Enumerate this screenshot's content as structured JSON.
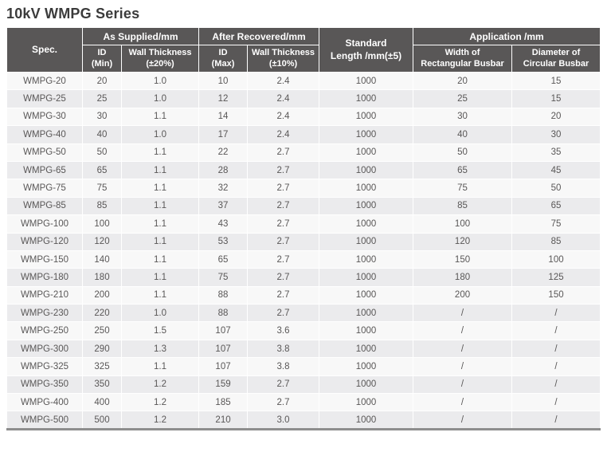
{
  "title": "10kV WMPG Series",
  "colors": {
    "header_bg": "#595757",
    "header_text": "#ffffff",
    "row_light": "#f8f8f8",
    "row_alt": "#ebebed",
    "cell_text": "#595757",
    "title_text": "#3b3b3b",
    "bottom_bar": "#8e8e8e"
  },
  "table": {
    "header": {
      "spec": "Spec.",
      "group_as_supplied": "As Supplied/mm",
      "group_after_recovered": "After Recovered/mm",
      "standard_length": "Standard\nLength /mm(±5)",
      "group_application": "Application /mm",
      "id_min": "ID\n(Min)",
      "wall_thickness_20": "Wall Thickness\n(±20%)",
      "id_max": "ID\n(Max)",
      "wall_thickness_10": "Wall Thickness\n(±10%)",
      "width_rect_busbar": "Width of\nRectangular Busbar",
      "dia_circ_busbar": "Diameter of\nCircular Busbar"
    },
    "rows": [
      [
        "WMPG-20",
        "20",
        "1.0",
        "10",
        "2.4",
        "1000",
        "20",
        "15"
      ],
      [
        "WMPG-25",
        "25",
        "1.0",
        "12",
        "2.4",
        "1000",
        "25",
        "15"
      ],
      [
        "WMPG-30",
        "30",
        "1.1",
        "14",
        "2.4",
        "1000",
        "30",
        "20"
      ],
      [
        "WMPG-40",
        "40",
        "1.0",
        "17",
        "2.4",
        "1000",
        "40",
        "30"
      ],
      [
        "WMPG-50",
        "50",
        "1.1",
        "22",
        "2.7",
        "1000",
        "50",
        "35"
      ],
      [
        "WMPG-65",
        "65",
        "1.1",
        "28",
        "2.7",
        "1000",
        "65",
        "45"
      ],
      [
        "WMPG-75",
        "75",
        "1.1",
        "32",
        "2.7",
        "1000",
        "75",
        "50"
      ],
      [
        "WMPG-85",
        "85",
        "1.1",
        "37",
        "2.7",
        "1000",
        "85",
        "65"
      ],
      [
        "WMPG-100",
        "100",
        "1.1",
        "43",
        "2.7",
        "1000",
        "100",
        "75"
      ],
      [
        "WMPG-120",
        "120",
        "1.1",
        "53",
        "2.7",
        "1000",
        "120",
        "85"
      ],
      [
        "WMPG-150",
        "140",
        "1.1",
        "65",
        "2.7",
        "1000",
        "150",
        "100"
      ],
      [
        "WMPG-180",
        "180",
        "1.1",
        "75",
        "2.7",
        "1000",
        "180",
        "125"
      ],
      [
        "WMPG-210",
        "200",
        "1.1",
        "88",
        "2.7",
        "1000",
        "200",
        "150"
      ],
      [
        "WMPG-230",
        "220",
        "1.0",
        "88",
        "2.7",
        "1000",
        "/",
        "/"
      ],
      [
        "WMPG-250",
        "250",
        "1.5",
        "107",
        "3.6",
        "1000",
        "/",
        "/"
      ],
      [
        "WMPG-300",
        "290",
        "1.3",
        "107",
        "3.8",
        "1000",
        "/",
        "/"
      ],
      [
        "WMPG-325",
        "325",
        "1.1",
        "107",
        "3.8",
        "1000",
        "/",
        "/"
      ],
      [
        "WMPG-350",
        "350",
        "1.2",
        "159",
        "2.7",
        "1000",
        "/",
        "/"
      ],
      [
        "WMPG-400",
        "400",
        "1.2",
        "185",
        "2.7",
        "1000",
        "/",
        "/"
      ],
      [
        "WMPG-500",
        "500",
        "1.2",
        "210",
        "3.0",
        "1000",
        "/",
        "/"
      ]
    ]
  }
}
